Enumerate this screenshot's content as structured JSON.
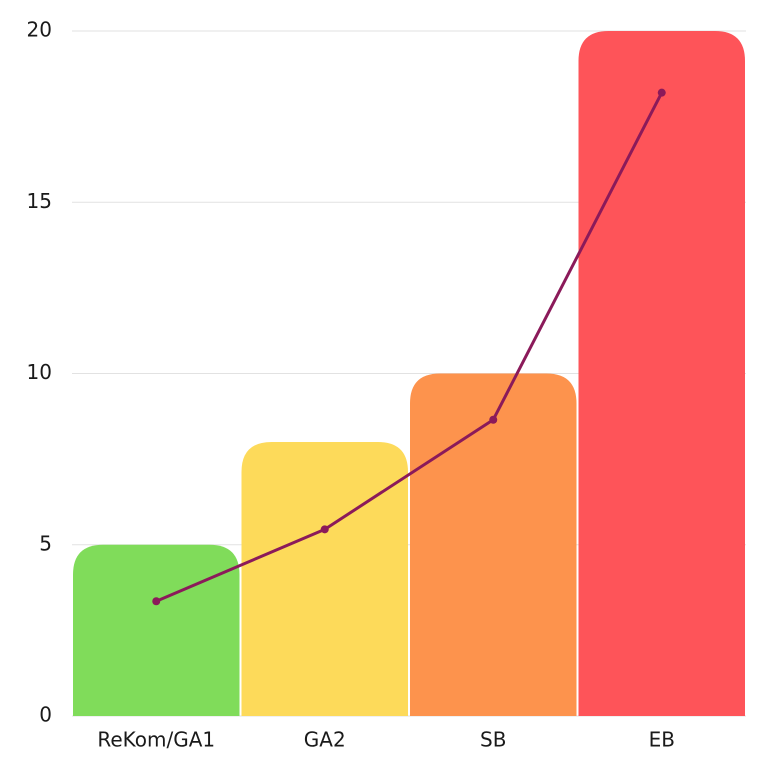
{
  "chart_data": {
    "type": "bar",
    "categories": [
      "ReKom/GA1",
      "GA2",
      "SB",
      "EB"
    ],
    "series": [
      {
        "type": "bar",
        "colors": [
          "#80dc5a",
          "#fdda5a",
          "#fd934d",
          "#fe5459"
        ],
        "values": [
          5,
          8,
          10,
          20
        ]
      },
      {
        "type": "line",
        "color": "#8b1a5a",
        "values": [
          3.35,
          5.45,
          8.65,
          18.2
        ]
      }
    ],
    "ylim": [
      0,
      20
    ],
    "yticks": [
      0,
      5,
      10,
      15,
      20
    ],
    "grid": true
  }
}
